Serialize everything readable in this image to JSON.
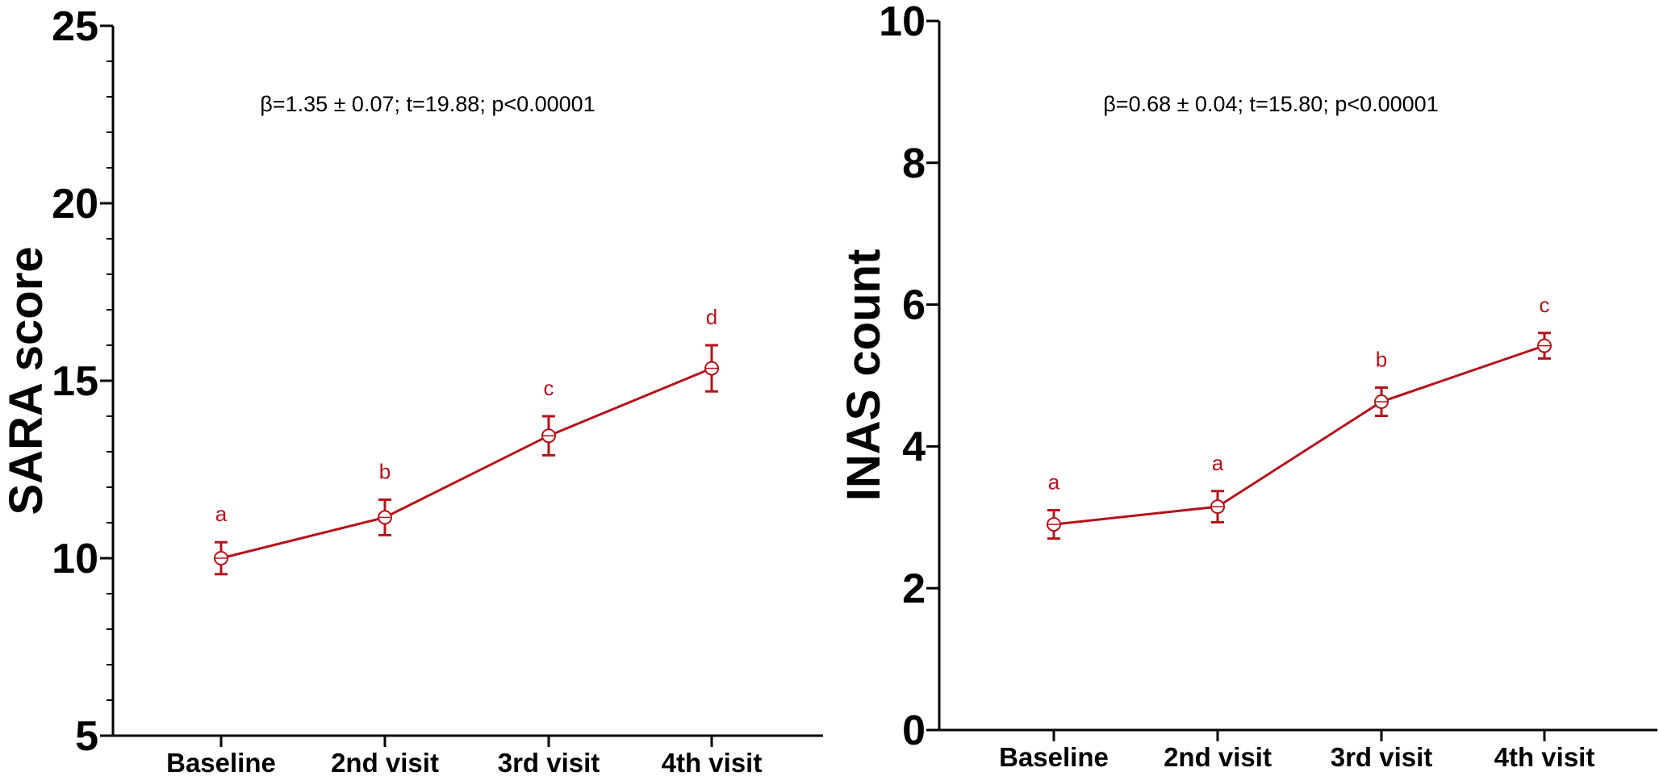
{
  "colors": {
    "series": "#b5121b",
    "axis": "#000000"
  },
  "chart_data": [
    {
      "type": "line",
      "title": "",
      "xlabel": "",
      "ylabel": "SARA score",
      "ylim": [
        5,
        25
      ],
      "yticks": [
        5,
        10,
        15,
        20,
        25
      ],
      "yminor_step": 1,
      "categories": [
        "Baseline",
        "2nd visit",
        "3rd visit",
        "4th visit"
      ],
      "series": [
        {
          "values": [
            10.0,
            11.15,
            13.45,
            15.35
          ],
          "error": [
            0.45,
            0.5,
            0.55,
            0.65
          ],
          "labels": [
            "a",
            "b",
            "c",
            "d"
          ]
        }
      ],
      "annotation": "β=1.35 ± 0.07; t=19.88; p<0.00001",
      "grid": false
    },
    {
      "type": "line",
      "title": "",
      "xlabel": "",
      "ylabel": "INAS count",
      "ylim": [
        0,
        10
      ],
      "yticks": [
        0,
        2,
        4,
        6,
        8,
        10
      ],
      "yminor_step": 0,
      "categories": [
        "Baseline",
        "2nd visit",
        "3rd visit",
        "4th visit"
      ],
      "series": [
        {
          "values": [
            2.9,
            3.15,
            4.63,
            5.42
          ],
          "error": [
            0.2,
            0.22,
            0.2,
            0.18
          ],
          "labels": [
            "a",
            "a",
            "b",
            "c"
          ]
        }
      ],
      "annotation": "β=0.68 ± 0.04; t=15.80; p<0.00001",
      "grid": false
    }
  ]
}
